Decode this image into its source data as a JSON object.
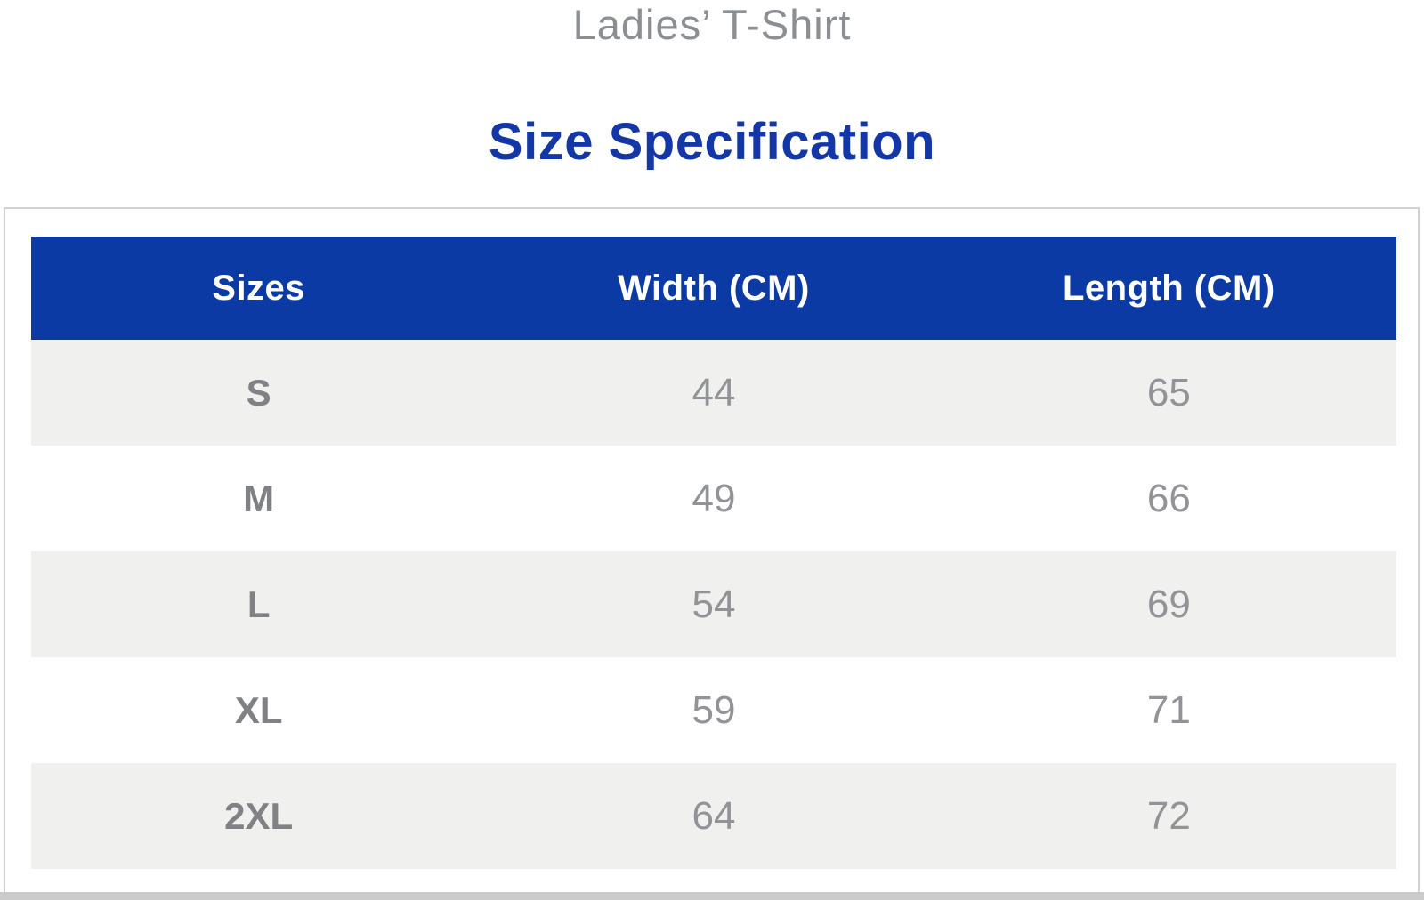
{
  "header": {
    "product_title": "Ladies’ T-Shirt",
    "section_title": "Size Specification"
  },
  "size_table": {
    "columns": [
      "Sizes",
      "Width (CM)",
      "Length (CM)"
    ],
    "rows": [
      {
        "size": "S",
        "width": "44",
        "length": "65"
      },
      {
        "size": "M",
        "width": "49",
        "length": "66"
      },
      {
        "size": "L",
        "width": "54",
        "length": "69"
      },
      {
        "size": "XL",
        "width": "59",
        "length": "71"
      },
      {
        "size": "2XL",
        "width": "64",
        "length": "72"
      }
    ]
  },
  "colors": {
    "header_bg": "#0B3AA5",
    "section_title_color": "#1337A7",
    "product_title_color": "#8B8E92",
    "row_alt_bg": "#F0F0EF",
    "label_color": "#7F8184",
    "value_color": "#919396",
    "panel_border_color": "#D2D2D2",
    "bottom_edge_color": "#CBCBCB"
  }
}
